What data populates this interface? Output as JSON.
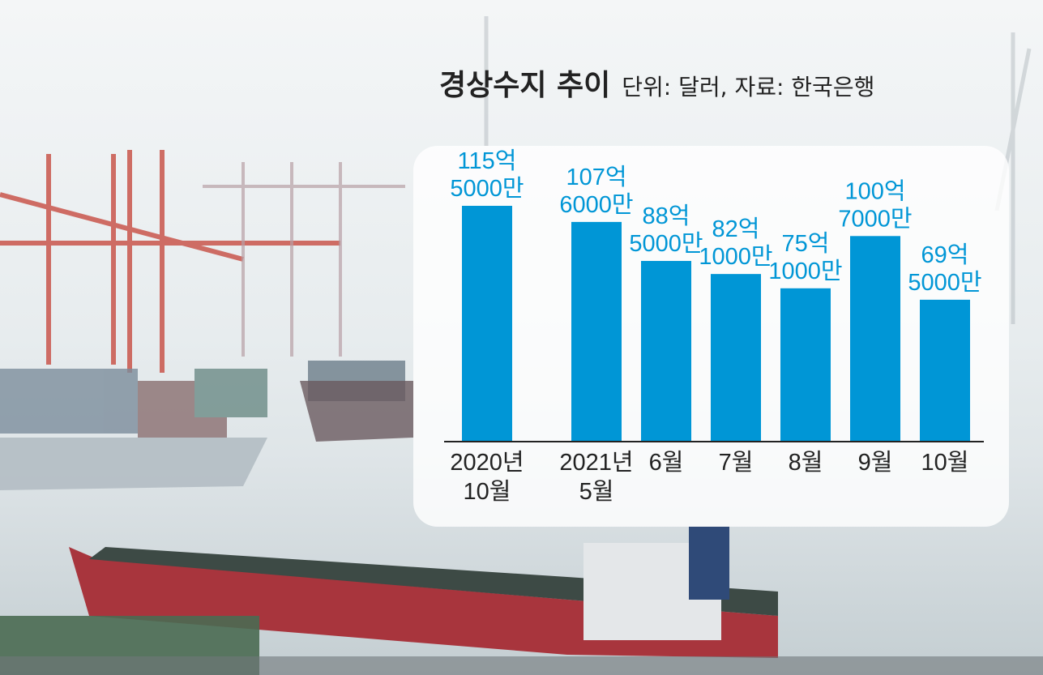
{
  "chart_data": {
    "type": "bar",
    "title": "경상수지 추이",
    "subtitle": "단위: 달러, 자료: 한국은행",
    "categories": [
      [
        "2020년",
        "10월"
      ],
      [
        "2021년",
        "5월"
      ],
      [
        "6월"
      ],
      [
        "7월"
      ],
      [
        "8월"
      ],
      [
        "9월"
      ],
      [
        "10월"
      ]
    ],
    "values": [
      11550000000,
      10760000000,
      8850000000,
      8210000000,
      7510000000,
      10070000000,
      6950000000
    ],
    "value_labels": [
      [
        "115억",
        "5000만"
      ],
      [
        "107억",
        "6000만"
      ],
      [
        "88억",
        "5000만"
      ],
      [
        "82억",
        "1000만"
      ],
      [
        "75억",
        "1000만"
      ],
      [
        "100억",
        "7000만"
      ],
      [
        "69억",
        "5000만"
      ]
    ],
    "ylim": [
      0,
      13000000000
    ],
    "bar_color": "#0096d6",
    "label_color": "#0096d6"
  }
}
